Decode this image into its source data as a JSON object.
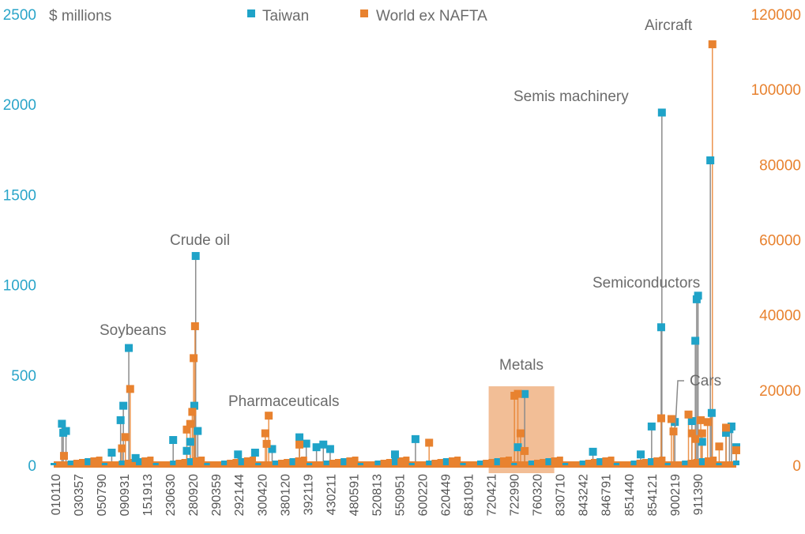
{
  "chart_data": {
    "type": "scatter",
    "unit_label": "$ millions",
    "legend": {
      "placement": "top",
      "entries": [
        {
          "name": "Taiwan",
          "color": "#1fa3c8"
        },
        {
          "name": "World ex NAFTA",
          "color": "#e8822f"
        }
      ]
    },
    "left_axis": {
      "min": 0,
      "max": 2500,
      "ticks": [
        "0",
        "500",
        "1000",
        "1500",
        "2000",
        "2500"
      ],
      "color": "#2aa5c9"
    },
    "right_axis": {
      "min": 0,
      "max": 120000,
      "ticks": [
        "0",
        "20000",
        "40000",
        "60000",
        "80000",
        "100000",
        "120000"
      ],
      "color": "#e8822f"
    },
    "x_categories": [
      "010110",
      "030357",
      "050790",
      "090931",
      "151913",
      "230630",
      "280920",
      "290359",
      "292144",
      "300420",
      "380120",
      "392119",
      "430211",
      "480591",
      "520813",
      "550951",
      "600220",
      "620449",
      "681091",
      "720421",
      "722990",
      "760320",
      "830710",
      "843242",
      "846791",
      "851440",
      "854121",
      "900219",
      "911390"
    ],
    "annotations": [
      "Soybeans",
      "Crude oil",
      "Pharmaceuticals",
      "Metals",
      "Semis machinery",
      "Semiconductors",
      "Cars",
      "Aircraft"
    ],
    "highlight_region": {
      "label": "Metals",
      "from_category": "720421",
      "to_category": "760320",
      "color": "#eea873"
    },
    "series": [
      {
        "name": "Taiwan",
        "axis": "left",
        "color": "#1fa3c8",
        "points": [
          {
            "x": 0.012,
            "y": 230
          },
          {
            "x": 0.014,
            "y": 180
          },
          {
            "x": 0.018,
            "y": 190
          },
          {
            "x": 0.085,
            "y": 70
          },
          {
            "x": 0.098,
            "y": 250
          },
          {
            "x": 0.102,
            "y": 330
          },
          {
            "x": 0.11,
            "y": 650
          },
          {
            "x": 0.12,
            "y": 40
          },
          {
            "x": 0.175,
            "y": 140
          },
          {
            "x": 0.195,
            "y": 80
          },
          {
            "x": 0.2,
            "y": 130
          },
          {
            "x": 0.206,
            "y": 330
          },
          {
            "x": 0.208,
            "y": 1160
          },
          {
            "x": 0.211,
            "y": 190
          },
          {
            "x": 0.27,
            "y": 60
          },
          {
            "x": 0.295,
            "y": 70
          },
          {
            "x": 0.32,
            "y": 90
          },
          {
            "x": 0.36,
            "y": 155
          },
          {
            "x": 0.37,
            "y": 120
          },
          {
            "x": 0.385,
            "y": 100
          },
          {
            "x": 0.395,
            "y": 115
          },
          {
            "x": 0.405,
            "y": 90
          },
          {
            "x": 0.5,
            "y": 60
          },
          {
            "x": 0.53,
            "y": 145
          },
          {
            "x": 0.68,
            "y": 100
          },
          {
            "x": 0.69,
            "y": 395
          },
          {
            "x": 0.79,
            "y": 75
          },
          {
            "x": 0.86,
            "y": 60
          },
          {
            "x": 0.876,
            "y": 215
          },
          {
            "x": 0.89,
            "y": 765
          },
          {
            "x": 0.891,
            "y": 1955
          },
          {
            "x": 0.91,
            "y": 240
          },
          {
            "x": 0.935,
            "y": 245
          },
          {
            "x": 0.94,
            "y": 690
          },
          {
            "x": 0.942,
            "y": 920
          },
          {
            "x": 0.944,
            "y": 940
          },
          {
            "x": 0.95,
            "y": 130
          },
          {
            "x": 0.962,
            "y": 1690
          },
          {
            "x": 0.964,
            "y": 290
          },
          {
            "x": 0.985,
            "y": 180
          },
          {
            "x": 0.99,
            "y": 200
          },
          {
            "x": 0.993,
            "y": 215
          },
          {
            "x": 1.0,
            "y": 100
          }
        ]
      },
      {
        "name": "World ex NAFTA",
        "axis": "right",
        "color": "#e8822f",
        "points": [
          {
            "x": 0.015,
            "y": 2500
          },
          {
            "x": 0.1,
            "y": 4500
          },
          {
            "x": 0.105,
            "y": 7500
          },
          {
            "x": 0.112,
            "y": 20300
          },
          {
            "x": 0.195,
            "y": 9500
          },
          {
            "x": 0.2,
            "y": 11000
          },
          {
            "x": 0.203,
            "y": 14200
          },
          {
            "x": 0.205,
            "y": 28500
          },
          {
            "x": 0.207,
            "y": 37000
          },
          {
            "x": 0.31,
            "y": 8500
          },
          {
            "x": 0.312,
            "y": 5700
          },
          {
            "x": 0.315,
            "y": 13200
          },
          {
            "x": 0.36,
            "y": 5500
          },
          {
            "x": 0.55,
            "y": 6000
          },
          {
            "x": 0.675,
            "y": 18500
          },
          {
            "x": 0.68,
            "y": 19000
          },
          {
            "x": 0.684,
            "y": 8500
          },
          {
            "x": 0.69,
            "y": 3800
          },
          {
            "x": 0.89,
            "y": 12500
          },
          {
            "x": 0.905,
            "y": 12300
          },
          {
            "x": 0.908,
            "y": 9000
          },
          {
            "x": 0.93,
            "y": 13500
          },
          {
            "x": 0.935,
            "y": 8500
          },
          {
            "x": 0.94,
            "y": 7000
          },
          {
            "x": 0.948,
            "y": 12000
          },
          {
            "x": 0.95,
            "y": 8500
          },
          {
            "x": 0.958,
            "y": 11500
          },
          {
            "x": 0.965,
            "y": 112000
          },
          {
            "x": 0.975,
            "y": 5000
          },
          {
            "x": 0.985,
            "y": 10000
          },
          {
            "x": 1.0,
            "y": 4000
          }
        ]
      }
    ]
  }
}
